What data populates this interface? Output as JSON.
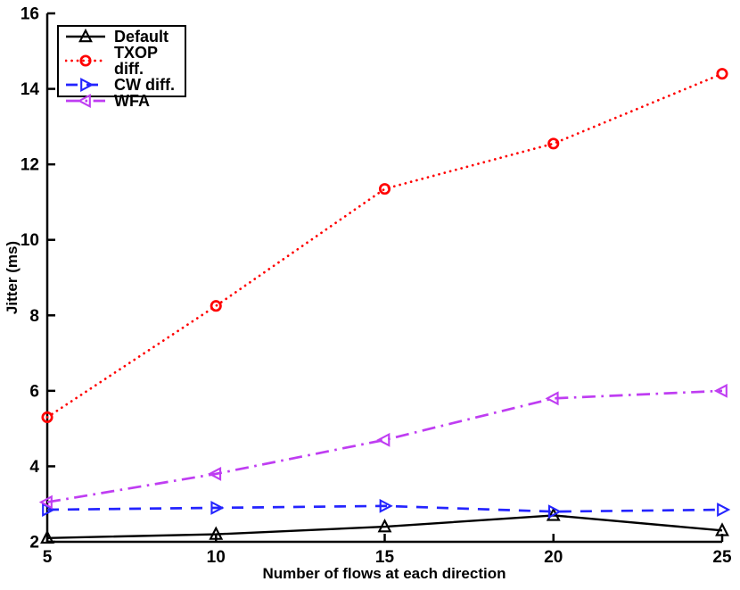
{
  "chart_data": {
    "type": "line",
    "title": "",
    "xlabel": "Number of flows at each direction",
    "ylabel": "Jitter (ms)",
    "x": [
      5,
      10,
      15,
      20,
      25
    ],
    "xlim": [
      5,
      25
    ],
    "ylim": [
      2,
      16
    ],
    "xticks": [
      5,
      10,
      15,
      20,
      25
    ],
    "yticks": [
      2,
      4,
      6,
      8,
      10,
      12,
      14,
      16
    ],
    "grid": false,
    "legend_position": "top-left",
    "axis_color": "#000000",
    "series": [
      {
        "name": "Default",
        "color": "#000000",
        "linestyle": "solid",
        "marker": "triangle-up",
        "values": [
          2.1,
          2.2,
          2.4,
          2.7,
          2.3
        ]
      },
      {
        "name": "TXOP diff.",
        "color": "#ff0000",
        "linestyle": "dotted",
        "marker": "circle",
        "values": [
          5.3,
          8.25,
          11.35,
          12.55,
          14.4
        ]
      },
      {
        "name": "CW diff.",
        "color": "#2424ff",
        "linestyle": "dashed",
        "marker": "triangle-right",
        "values": [
          2.85,
          2.9,
          2.95,
          2.8,
          2.85
        ]
      },
      {
        "name": "WFA",
        "color": "#bf3df2",
        "linestyle": "dashdot",
        "marker": "triangle-left",
        "values": [
          3.05,
          3.8,
          4.7,
          5.8,
          6.0
        ]
      }
    ]
  }
}
